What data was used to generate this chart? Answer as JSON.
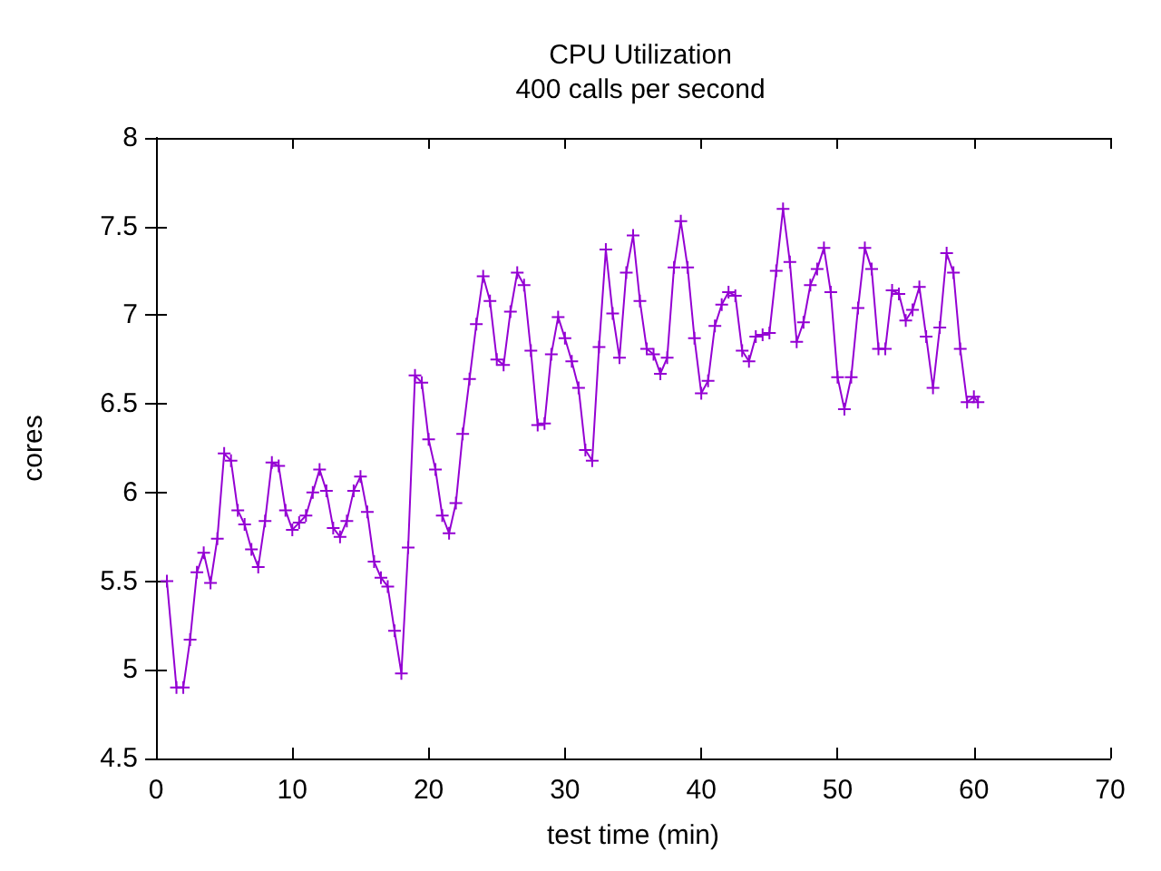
{
  "chart_data": {
    "type": "line",
    "title": "CPU Utilization",
    "subtitle": "400 calls per second",
    "xlabel": "test time (min)",
    "ylabel": "cores",
    "x": [
      0.8,
      1.5,
      2,
      2.5,
      3,
      3.5,
      4,
      4.5,
      5,
      5.5,
      6,
      6.5,
      7,
      7.5,
      8,
      8.5,
      9,
      9.5,
      10,
      10.5,
      11,
      11.5,
      12,
      12.5,
      13,
      13.5,
      14,
      14.5,
      15,
      15.5,
      16,
      16.5,
      17,
      17.5,
      18,
      18.5,
      19,
      19.5,
      20,
      20.5,
      21,
      21.5,
      22,
      22.5,
      23,
      23.5,
      24,
      24.5,
      25,
      25.5,
      26,
      26.5,
      27,
      27.5,
      28,
      28.5,
      29,
      29.5,
      30,
      30.5,
      31,
      31.5,
      32,
      32.5,
      33,
      33.5,
      34,
      34.5,
      35,
      35.5,
      36,
      36.5,
      37,
      37.5,
      38,
      38.5,
      39,
      39.5,
      40,
      40.5,
      41,
      41.5,
      42,
      42.5,
      43,
      43.5,
      44,
      44.5,
      45,
      45.5,
      46,
      46.5,
      47,
      47.5,
      48,
      48.5,
      49,
      49.5,
      50,
      50.5,
      51,
      51.5,
      52,
      52.5,
      53,
      53.5,
      54,
      54.5,
      55,
      55.5,
      56,
      56.5,
      57,
      57.5,
      58,
      58.5,
      59,
      59.5,
      60,
      60.3
    ],
    "series": [
      {
        "color": "#9400d3",
        "values": [
          5.5,
          4.9,
          4.9,
          5.17,
          5.55,
          5.66,
          5.49,
          5.74,
          6.22,
          6.18,
          5.9,
          5.82,
          5.68,
          5.58,
          5.84,
          6.17,
          6.15,
          5.9,
          5.79,
          5.83,
          5.87,
          6.0,
          6.13,
          6.01,
          5.8,
          5.75,
          5.84,
          6.01,
          6.09,
          5.89,
          5.61,
          5.52,
          5.47,
          5.22,
          4.98,
          5.69,
          6.66,
          6.62,
          6.3,
          6.13,
          5.87,
          5.77,
          5.94,
          6.33,
          6.64,
          6.95,
          7.22,
          7.08,
          6.75,
          6.72,
          7.02,
          7.24,
          7.17,
          6.8,
          6.38,
          6.39,
          6.78,
          6.99,
          6.87,
          6.74,
          6.59,
          6.24,
          6.18,
          6.82,
          7.37,
          7.01,
          6.76,
          7.24,
          7.45,
          7.08,
          6.81,
          6.78,
          6.67,
          6.76,
          7.27,
          7.53,
          7.27,
          6.87,
          6.56,
          6.63,
          6.94,
          7.06,
          7.13,
          7.11,
          6.8,
          6.74,
          6.88,
          6.89,
          6.9,
          7.25,
          7.6,
          7.3,
          6.85,
          6.96,
          7.17,
          7.26,
          7.38,
          7.13,
          6.65,
          6.47,
          6.65,
          7.04,
          7.38,
          7.26,
          6.81,
          6.81,
          7.14,
          7.12,
          6.97,
          7.03,
          7.16,
          6.88,
          6.59,
          6.93,
          7.35,
          7.24,
          6.81,
          6.51,
          6.54,
          6.51
        ]
      }
    ],
    "xlim": [
      0,
      70
    ],
    "xticks": [
      0,
      10,
      20,
      30,
      40,
      50,
      60,
      70
    ],
    "ylim": [
      4.5,
      8
    ],
    "yticks": [
      4.5,
      5,
      5.5,
      6,
      6.5,
      7,
      7.5,
      8
    ],
    "grid": false,
    "marker": "cross",
    "line_style": "solid"
  }
}
